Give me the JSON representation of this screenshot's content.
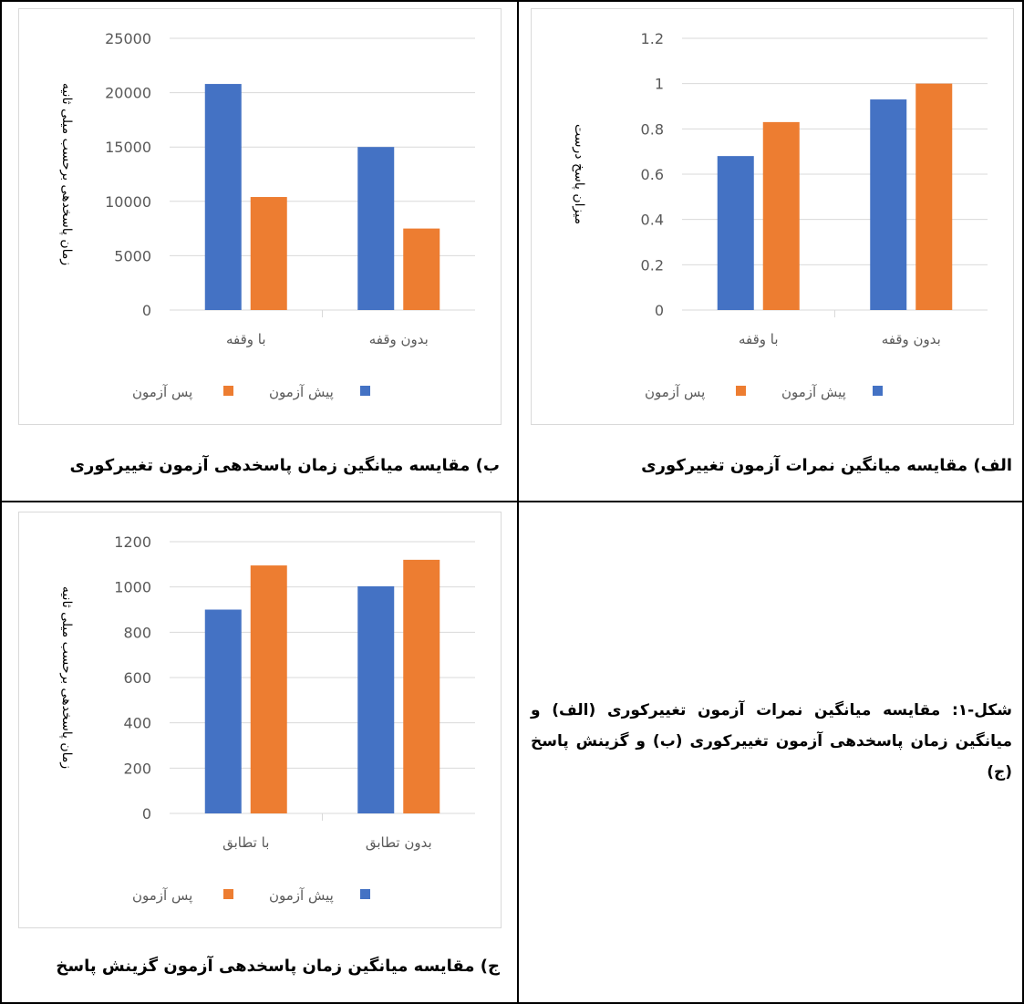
{
  "captions": {
    "chart_a": "الف) مقایسه میانگین نمرات آزمون تغییرکوری",
    "chart_b": "ب) مقایسه میانگین زمان پاسخدهی آزمون تغییرکوری",
    "chart_c": "ج) مقایسه میانگین زمان پاسخدهی آزمون گزینش پاسخ",
    "figure": "شکل-۱: مقایسه میانگین نمرات آزمون تغییرکوری (الف) و میانگین زمان پاسخدهی آزمون تغییرکوری (ب) و گزینش پاسخ (ج)"
  },
  "colors": {
    "pre": "#4472C4",
    "post": "#ED7D31",
    "grid": "#d9d9d9",
    "axis_text": "#595959"
  },
  "chart_data": [
    {
      "id": "a",
      "type": "bar",
      "categories": [
        "با وقفه",
        "بدون وقفه"
      ],
      "series": [
        {
          "name": "پیش آزمون",
          "values": [
            0.68,
            0.93
          ]
        },
        {
          "name": "پس آزمون",
          "values": [
            0.83,
            1.0
          ]
        }
      ],
      "ylabel": "میزان پاسخ درست",
      "ylim": [
        0,
        1.2
      ],
      "yticks": [
        "0",
        "0.2",
        "0.4",
        "0.6",
        "0.8",
        "1",
        "1.2"
      ],
      "legend": "bottom",
      "grid": true
    },
    {
      "id": "b",
      "type": "bar",
      "categories": [
        "با وقفه",
        "بدون وقفه"
      ],
      "series": [
        {
          "name": "پیش آزمون",
          "values": [
            20800,
            15000
          ]
        },
        {
          "name": "پس آزمون",
          "values": [
            10400,
            7500
          ]
        }
      ],
      "ylabel": "زمان پاسخدهی برحسب میلی ثانیه",
      "ylim": [
        0,
        25000
      ],
      "yticks": [
        "0",
        "5000",
        "10000",
        "15000",
        "20000",
        "25000"
      ],
      "legend": "bottom",
      "grid": true
    },
    {
      "id": "c",
      "type": "bar",
      "categories": [
        "با تطابق",
        "بدون تطابق"
      ],
      "series": [
        {
          "name": "پیش آزمون",
          "values": [
            900,
            1003
          ]
        },
        {
          "name": "پس آزمون",
          "values": [
            1095,
            1120
          ]
        }
      ],
      "ylabel": "زمان پاسخدهی برحسب میلی ثانیه",
      "ylim": [
        0,
        1200
      ],
      "yticks": [
        "0",
        "200",
        "400",
        "600",
        "800",
        "1000",
        "1200"
      ],
      "legend": "bottom",
      "grid": true
    }
  ]
}
